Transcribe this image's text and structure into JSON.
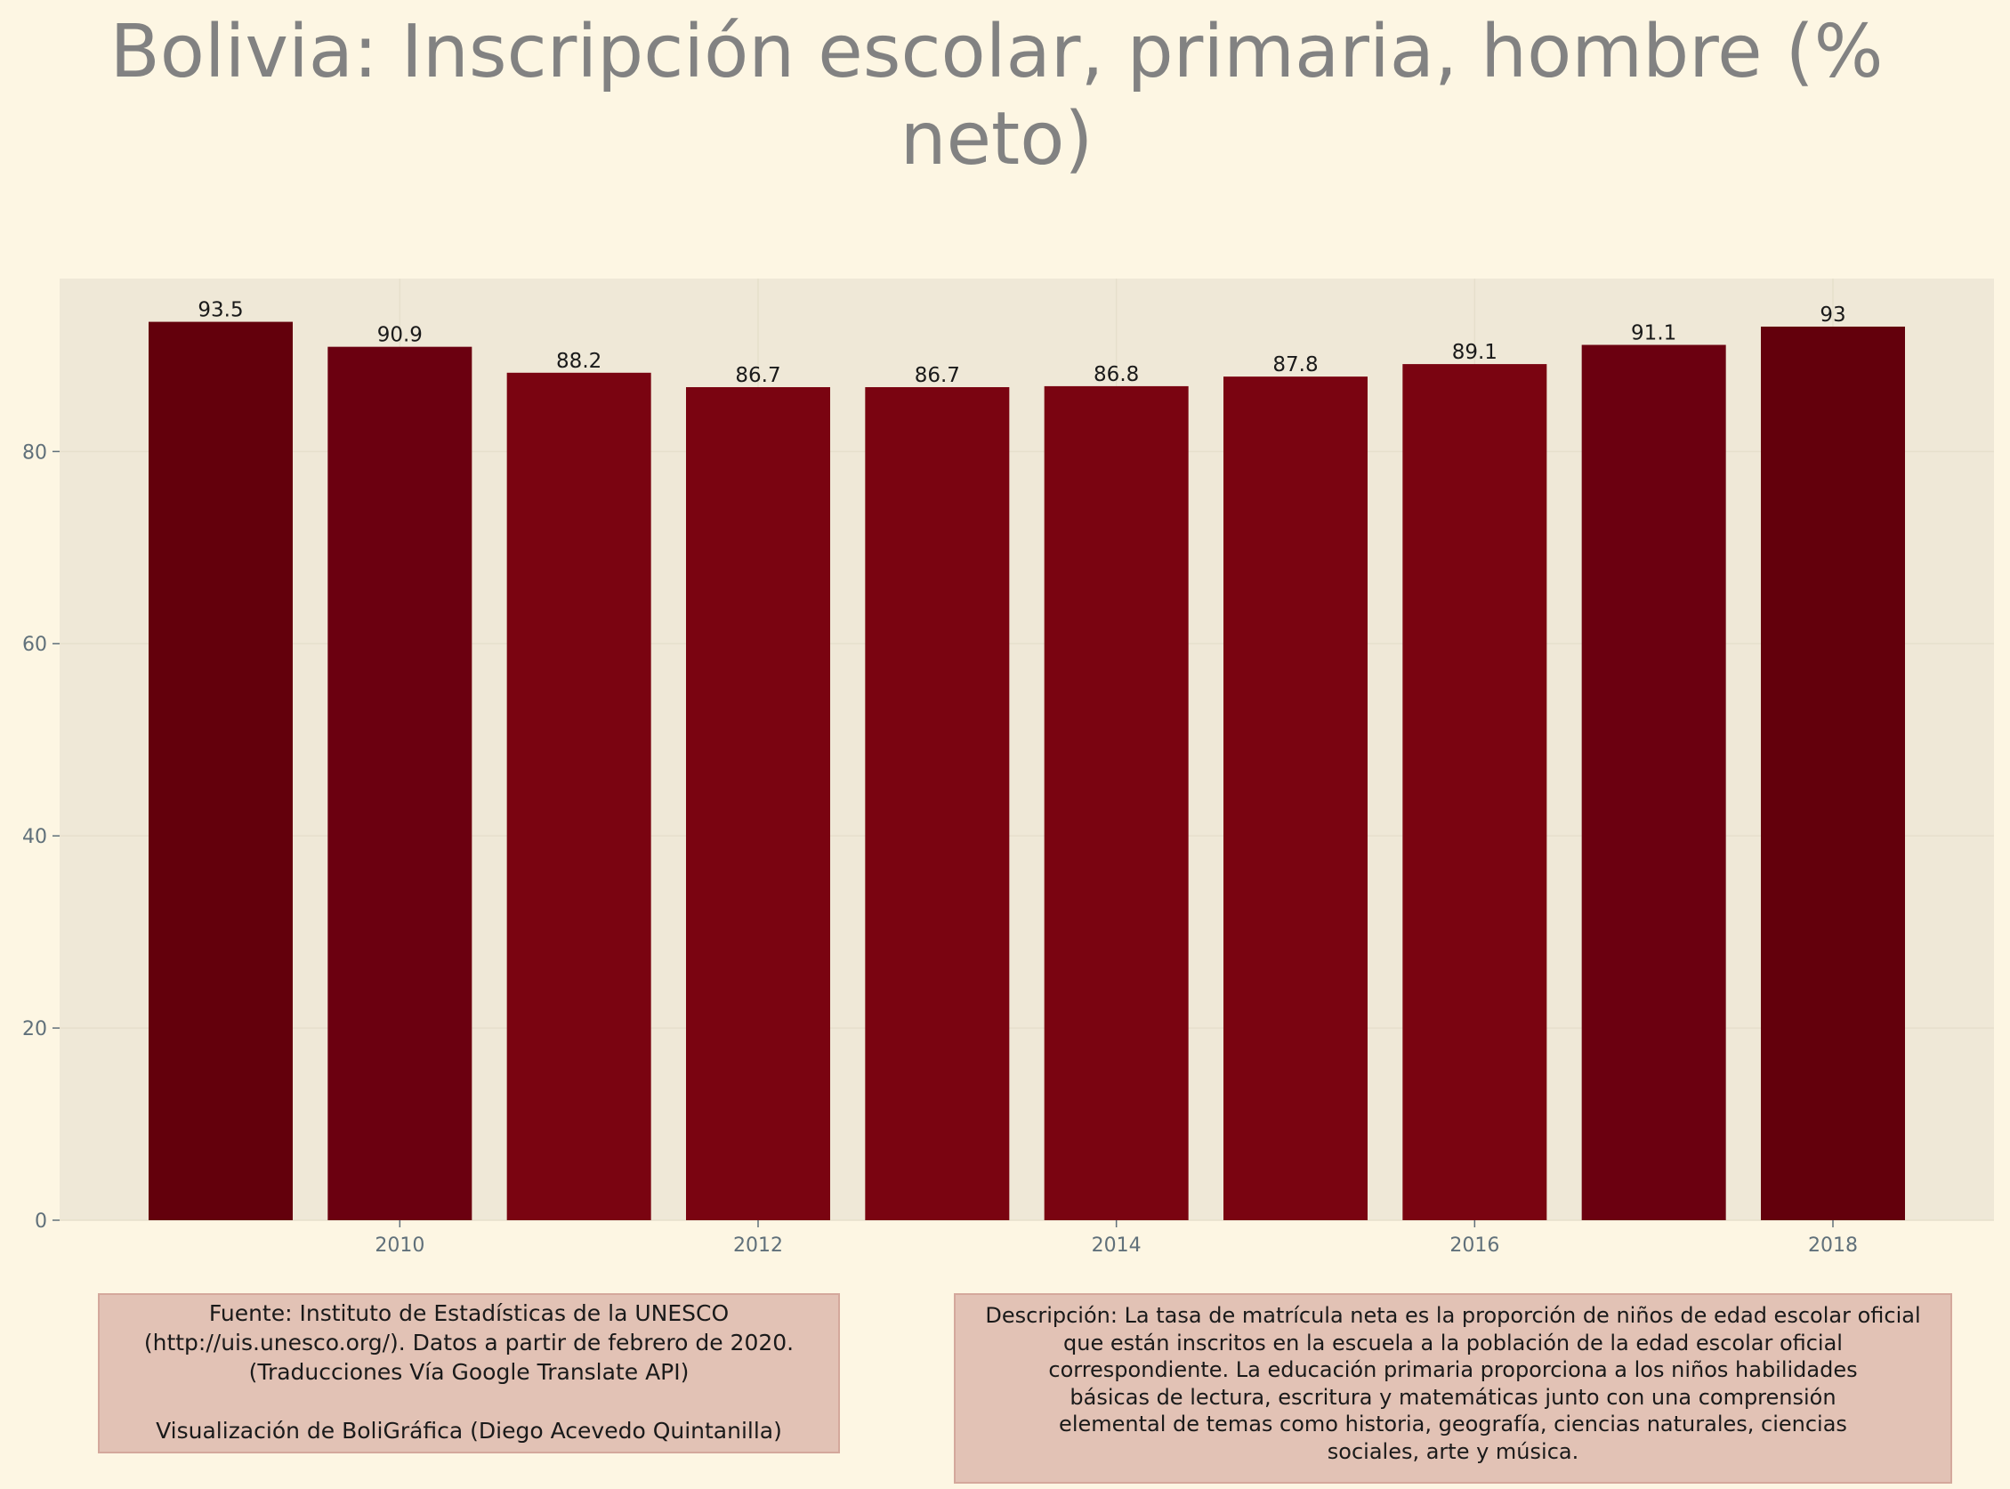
{
  "title": "Bolivia:  Inscripción escolar, primaria, hombre (% neto)",
  "title_lines": [
    "Bolivia:  Inscripción escolar, primaria, hombre (%",
    "neto)"
  ],
  "colors": {
    "background": "#fdf6e3",
    "plot_background": "#efe8d7",
    "bar_dark": "#63000c",
    "bar_mid": "#6b0010",
    "bar_light": "#7a0411",
    "axis_text": "#60707a"
  },
  "chart_data": {
    "type": "bar",
    "title": "Bolivia:  Inscripción escolar, primaria, hombre (% neto)",
    "xlabel": "",
    "ylabel": "",
    "categories": [
      2009,
      2010,
      2011,
      2012,
      2013,
      2014,
      2015,
      2016,
      2017,
      2018
    ],
    "values": [
      93.5,
      90.9,
      88.2,
      86.7,
      86.7,
      86.8,
      87.8,
      89.1,
      91.1,
      93
    ],
    "value_labels": [
      "93.5",
      "90.9",
      "88.2",
      "86.7",
      "86.7",
      "86.8",
      "87.8",
      "89.1",
      "91.1",
      "93"
    ],
    "x_ticks": [
      "2010",
      "2012",
      "2014",
      "2016",
      "2018"
    ],
    "y_ticks": [
      "0",
      "20",
      "40",
      "60",
      "80"
    ],
    "y_tick_values": [
      0,
      20,
      40,
      60,
      80
    ],
    "ylim": [
      0,
      98
    ],
    "grid": true,
    "legend": "none"
  },
  "source_box": {
    "lines": [
      "Fuente: Instituto de Estadísticas de la UNESCO",
      "(http://uis.unesco.org/). Datos a partir de febrero de 2020.",
      "(Traducciones Vía Google Translate API)",
      "",
      "Visualización de BoliGráfica (Diego Acevedo Quintanilla)"
    ]
  },
  "description_box": {
    "lines": [
      "Descripción: La tasa de matrícula neta es la proporción de niños de edad escolar oficial",
      "que están inscritos en la escuela a la población de la edad escolar oficial",
      "correspondiente. La educación primaria proporciona a los niños habilidades",
      "básicas de lectura, escritura y matemáticas junto con una comprensión",
      "elemental de temas como historia, geografía, ciencias naturales, ciencias",
      "sociales, arte y música."
    ]
  }
}
